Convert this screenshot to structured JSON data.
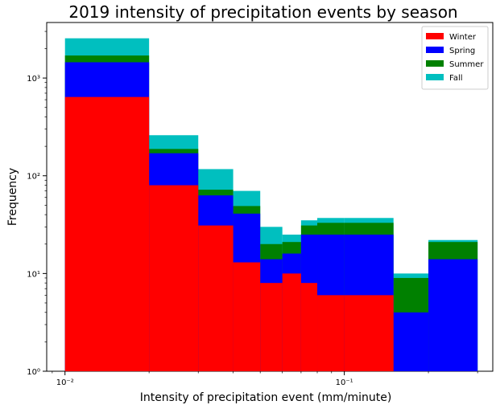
{
  "chart_data": {
    "type": "bar",
    "stacked": true,
    "title": "2019 intensity of precipitation events by season",
    "xlabel": "Intensity of precipitation event (mm/minute)",
    "ylabel": "Frequency",
    "xscale": "log",
    "yscale": "log",
    "xlim": [
      0.0086,
      0.34
    ],
    "ylim": [
      1,
      3700
    ],
    "xticks": [
      {
        "value": 0.01,
        "label": "10⁻²"
      },
      {
        "value": 0.1,
        "label": "10⁻¹"
      }
    ],
    "yticks": [
      {
        "value": 1,
        "label": "10⁰"
      },
      {
        "value": 10,
        "label": "10¹"
      },
      {
        "value": 100,
        "label": "10²"
      },
      {
        "value": 1000,
        "label": "10³"
      }
    ],
    "bin_edges": [
      0.01,
      0.02,
      0.03,
      0.04,
      0.05,
      0.06,
      0.07,
      0.08,
      0.1,
      0.15,
      0.2,
      0.3
    ],
    "series": [
      {
        "name": "Winter",
        "color": "#ff0000",
        "cumulative": [
          640,
          80,
          31,
          13,
          8,
          10,
          8,
          6,
          6,
          1,
          1
        ]
      },
      {
        "name": "Spring",
        "color": "#0000ff",
        "cumulative": [
          1450,
          170,
          63,
          41,
          14,
          16,
          25,
          25,
          25,
          4,
          14
        ]
      },
      {
        "name": "Summer",
        "color": "#008000",
        "cumulative": [
          1700,
          188,
          72,
          49,
          20,
          21,
          31,
          33,
          33,
          9,
          21
        ]
      },
      {
        "name": "Fall",
        "color": "#00bfbf",
        "cumulative": [
          2550,
          260,
          117,
          70,
          30,
          25,
          35,
          37,
          37,
          10,
          22
        ]
      }
    ],
    "legend_position": "top-right",
    "grid": false
  }
}
